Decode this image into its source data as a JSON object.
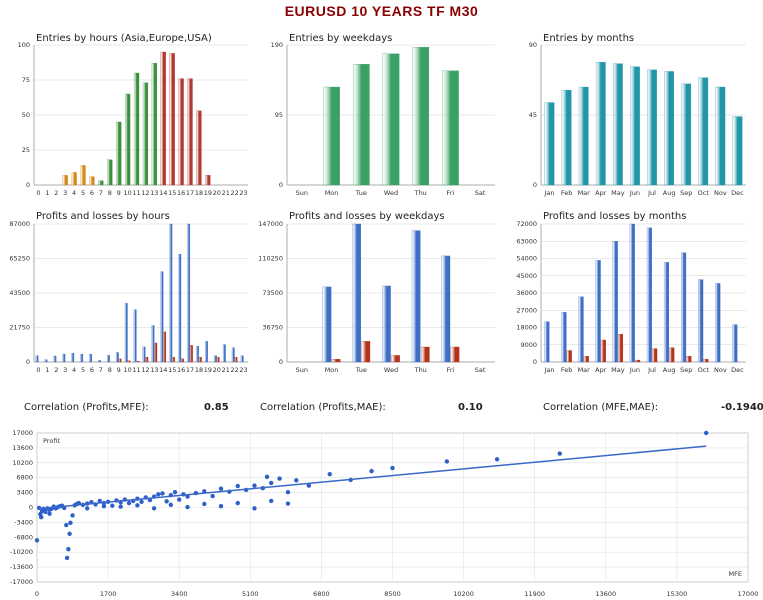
{
  "page_title": "EURUSD    10 YEARS    TF M30",
  "colors": {
    "red": "#b03a2e",
    "orange": "#d48a1a",
    "green": "#3a8f3a",
    "seagreen": "#3aa065",
    "teal": "#2196a8",
    "blue": "#3f6fc4",
    "darkred": "#b3341b",
    "scatter": "#2f5fc8",
    "line": "#3a68c8"
  },
  "correlations": [
    {
      "label": "Correlation (Profits,MFE):",
      "value": "0.85"
    },
    {
      "label": "Correlation (Profits,MAE):",
      "value": "0.10"
    },
    {
      "label": "Correlation (MFE,MAE):",
      "value": "-0.1940"
    }
  ],
  "chart_data": [
    {
      "id": "hours",
      "type": "bar",
      "title": "Entries by hours (Asia,Europe,USA)",
      "categories": [
        "0",
        "1",
        "2",
        "3",
        "4",
        "5",
        "6",
        "7",
        "8",
        "9",
        "10",
        "11",
        "12",
        "13",
        "14",
        "15",
        "16",
        "17",
        "18",
        "19",
        "20",
        "21",
        "22",
        "23"
      ],
      "values": [
        0,
        0,
        0,
        7,
        9,
        14,
        6,
        3,
        18,
        45,
        65,
        80,
        73,
        87,
        95,
        94,
        76,
        76,
        53,
        7,
        0,
        0,
        0,
        0
      ],
      "bar_colors": [
        "orange",
        "orange",
        "orange",
        "orange",
        "orange",
        "orange",
        "orange",
        "green",
        "green",
        "green",
        "green",
        "green",
        "green",
        "green",
        "red",
        "red",
        "red",
        "red",
        "red",
        "red",
        "red",
        "red",
        "red",
        "red"
      ],
      "ylim": [
        0,
        100
      ],
      "yticks": [
        "0",
        "25",
        "50",
        "75",
        "100"
      ],
      "grid": true
    },
    {
      "id": "weekdays",
      "type": "bar",
      "title": "Entries by weekdays",
      "categories": [
        "Sun",
        "Mon",
        "Tue",
        "Wed",
        "Thu",
        "Fri",
        "Sat"
      ],
      "values": [
        0,
        133,
        164,
        178,
        187,
        155,
        0
      ],
      "ylim": [
        0,
        190
      ],
      "yticks": [
        "0",
        "95",
        "190"
      ],
      "grid": true
    },
    {
      "id": "months",
      "type": "bar",
      "title": "Entries by months",
      "categories": [
        "Jan",
        "Feb",
        "Mar",
        "Apr",
        "May",
        "Jun",
        "Jul",
        "Aug",
        "Sep",
        "Oct",
        "Nov",
        "Dec"
      ],
      "values": [
        53,
        61,
        63,
        79,
        78,
        76,
        74,
        73,
        65,
        69,
        63,
        44
      ],
      "ylim": [
        0,
        90
      ],
      "yticks": [
        "0",
        "45",
        "90"
      ],
      "grid": true
    },
    {
      "id": "pl-hours",
      "type": "bar",
      "title": "Profits and losses by hours",
      "categories": [
        "0",
        "1",
        "2",
        "3",
        "4",
        "5",
        "6",
        "7",
        "8",
        "9",
        "10",
        "11",
        "12",
        "13",
        "14",
        "15",
        "16",
        "17",
        "18",
        "19",
        "20",
        "21",
        "22",
        "23"
      ],
      "series": [
        {
          "values": [
            4000,
            1500,
            3800,
            5000,
            5500,
            5000,
            5000,
            1000,
            4200,
            6000,
            37000,
            33000,
            9500,
            23000,
            57000,
            87000,
            68000,
            87000,
            10000,
            13000,
            4000,
            11000,
            9000,
            4000
          ]
        },
        {
          "values": [
            0,
            0,
            0,
            0,
            0,
            0,
            0,
            0,
            0,
            2000,
            800,
            500,
            3000,
            12000,
            19000,
            3000,
            2000,
            10500,
            3000,
            0,
            3000,
            0,
            3000,
            0
          ]
        }
      ],
      "ylim": [
        0,
        87000
      ],
      "yticks": [
        "0",
        "21750",
        "43500",
        "65250",
        "87000"
      ],
      "grid": true
    },
    {
      "id": "pl-weekdays",
      "type": "bar",
      "title": "Profits and losses by weekdays",
      "categories": [
        "Sun",
        "Mon",
        "Tue",
        "Wed",
        "Thu",
        "Fri",
        "Sat"
      ],
      "series": [
        {
          "values": [
            0,
            80000,
            147000,
            81000,
            140000,
            113000,
            0
          ]
        },
        {
          "values": [
            0,
            3000,
            22000,
            7000,
            16000,
            16000,
            0
          ]
        }
      ],
      "ylim": [
        0,
        147000
      ],
      "yticks": [
        "0",
        "36750",
        "73500",
        "110250",
        "147000"
      ],
      "grid": true
    },
    {
      "id": "pl-months",
      "type": "bar",
      "title": "Profits and losses by months",
      "categories": [
        "Jan",
        "Feb",
        "Mar",
        "Apr",
        "May",
        "Jun",
        "Jul",
        "Aug",
        "Sep",
        "Oct",
        "Nov",
        "Dec"
      ],
      "series": [
        {
          "values": [
            21000,
            26000,
            34000,
            53000,
            63000,
            72000,
            70000,
            52000,
            57000,
            43000,
            41000,
            19500
          ]
        },
        {
          "values": [
            0,
            6000,
            3000,
            11500,
            14500,
            1000,
            7000,
            7500,
            3000,
            1500,
            0,
            0
          ]
        }
      ],
      "ylim": [
        0,
        72000
      ],
      "yticks": [
        "0",
        "9000",
        "18000",
        "27000",
        "36000",
        "45000",
        "54000",
        "63000",
        "72000"
      ],
      "grid": true
    },
    {
      "id": "scatter",
      "type": "scatter",
      "xlabel": "MFE",
      "ylabel": "Profit",
      "xlim": [
        0,
        17000
      ],
      "ylim": [
        -17000,
        17000
      ],
      "xticks": [
        "0",
        "1700",
        "3400",
        "5100",
        "6800",
        "8500",
        "10200",
        "11900",
        "13600",
        "15300",
        "17000"
      ],
      "yticks": [
        "17000",
        "13600",
        "10200",
        "6800",
        "3400",
        "0",
        "-3400",
        "-6800",
        "-10200",
        "-13600",
        "-17000"
      ],
      "trendline": [
        [
          0,
          -300
        ],
        [
          16000,
          14000
        ]
      ],
      "points": [
        [
          0,
          -7500
        ],
        [
          50,
          -100
        ],
        [
          80,
          -1500
        ],
        [
          100,
          -2200
        ],
        [
          120,
          -800
        ],
        [
          150,
          -300
        ],
        [
          180,
          -600
        ],
        [
          200,
          -1000
        ],
        [
          250,
          -200
        ],
        [
          300,
          -500
        ],
        [
          300,
          -1400
        ],
        [
          350,
          -300
        ],
        [
          400,
          200
        ],
        [
          450,
          -200
        ],
        [
          500,
          100
        ],
        [
          550,
          300
        ],
        [
          600,
          400
        ],
        [
          650,
          -100
        ],
        [
          700,
          -4000
        ],
        [
          720,
          -11500
        ],
        [
          750,
          -9500
        ],
        [
          780,
          -6000
        ],
        [
          800,
          -3500
        ],
        [
          850,
          -1800
        ],
        [
          900,
          500
        ],
        [
          950,
          800
        ],
        [
          1000,
          1000
        ],
        [
          1100,
          600
        ],
        [
          1200,
          900
        ],
        [
          1300,
          1200
        ],
        [
          1400,
          700
        ],
        [
          1500,
          1500
        ],
        [
          1600,
          1000
        ],
        [
          1700,
          1300
        ],
        [
          1800,
          400
        ],
        [
          1900,
          1600
        ],
        [
          2000,
          1200
        ],
        [
          2100,
          1800
        ],
        [
          2200,
          1000
        ],
        [
          2300,
          1500
        ],
        [
          2400,
          2000
        ],
        [
          2500,
          1300
        ],
        [
          2600,
          2300
        ],
        [
          2700,
          1700
        ],
        [
          2800,
          2500
        ],
        [
          2900,
          3000
        ],
        [
          3000,
          3200
        ],
        [
          3100,
          1400
        ],
        [
          3200,
          2800
        ],
        [
          3300,
          3500
        ],
        [
          3400,
          1800
        ],
        [
          3500,
          3000
        ],
        [
          3600,
          2500
        ],
        [
          3800,
          3300
        ],
        [
          4000,
          3700
        ],
        [
          4200,
          2600
        ],
        [
          4400,
          4300
        ],
        [
          4600,
          3600
        ],
        [
          4800,
          4900
        ],
        [
          5000,
          4000
        ],
        [
          5200,
          5000
        ],
        [
          5400,
          4400
        ],
        [
          5600,
          5600
        ],
        [
          5800,
          6600
        ],
        [
          5500,
          7000
        ],
        [
          6000,
          3500
        ],
        [
          6200,
          6200
        ],
        [
          6500,
          5000
        ],
        [
          7000,
          7600
        ],
        [
          7500,
          6300
        ],
        [
          8000,
          8300
        ],
        [
          8500,
          9000
        ],
        [
          9800,
          10500
        ],
        [
          11000,
          11000
        ],
        [
          12500,
          12300
        ],
        [
          16000,
          17000
        ],
        [
          1200,
          -200
        ],
        [
          1600,
          300
        ],
        [
          2000,
          200
        ],
        [
          2400,
          500
        ],
        [
          2800,
          -200
        ],
        [
          3200,
          600
        ],
        [
          3600,
          100
        ],
        [
          4000,
          800
        ],
        [
          4400,
          300
        ],
        [
          4800,
          1000
        ],
        [
          5200,
          -200
        ],
        [
          5600,
          1500
        ],
        [
          6000,
          900
        ]
      ],
      "grid": true
    }
  ]
}
